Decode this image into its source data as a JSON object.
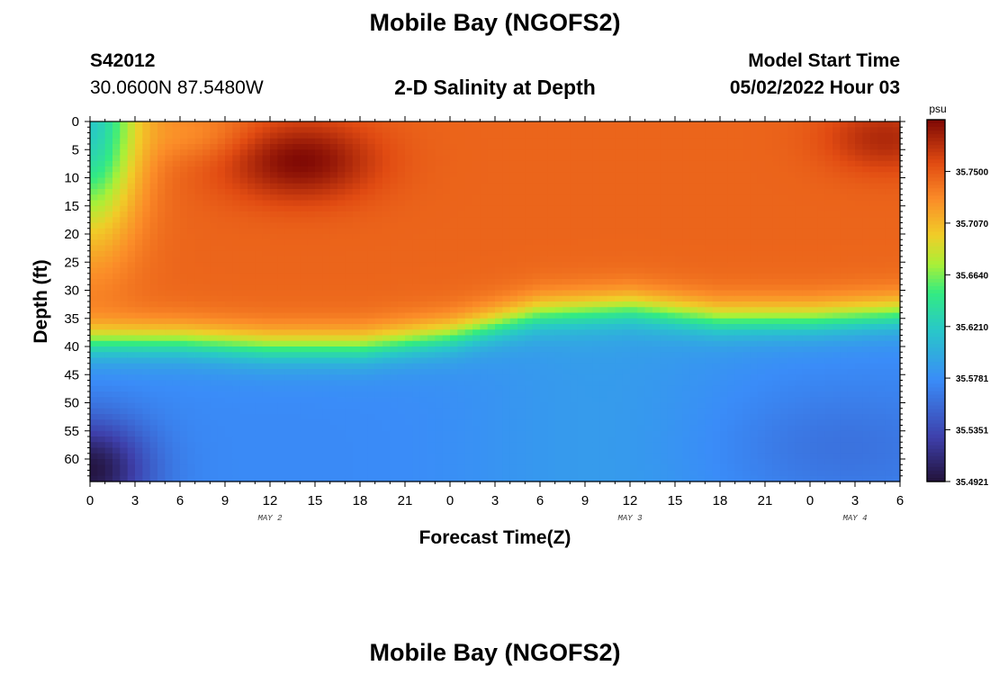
{
  "header": {
    "title": "Mobile Bay (NGOFS2)",
    "station_id": "S42012",
    "coordinates": "30.0600N  87.5480W",
    "subtitle": "2-D Salinity at Depth",
    "model_start_label": "Model Start Time",
    "model_start_value": "05/02/2022 Hour 03"
  },
  "footer": {
    "title": "Mobile Bay (NGOFS2)"
  },
  "chart_data": {
    "type": "heatmap",
    "title": "2-D Salinity at Depth",
    "xlabel": "Forecast Time(Z)",
    "ylabel": "Depth (ft)",
    "x_tick_labels": [
      "0",
      "3",
      "6",
      "9",
      "12",
      "15",
      "18",
      "21",
      "0",
      "3",
      "6",
      "9",
      "12",
      "15",
      "18",
      "21",
      "0",
      "3",
      "6"
    ],
    "x_hours_range": [
      0,
      54
    ],
    "day_labels": [
      {
        "label": "MAY 2",
        "hour": 12
      },
      {
        "label": "MAY 3",
        "hour": 36
      },
      {
        "label": "MAY 4",
        "hour": 51
      }
    ],
    "y_ticks": [
      0,
      5,
      10,
      15,
      20,
      25,
      30,
      35,
      40,
      45,
      50,
      55,
      60
    ],
    "ylim": [
      0,
      64
    ],
    "y_inverted": true,
    "colorbar": {
      "unit": "psu",
      "labels": [
        "35.7500",
        "35.7070",
        "35.6640",
        "35.6210",
        "35.5781",
        "35.5351",
        "35.4921"
      ],
      "values": [
        35.75,
        35.707,
        35.664,
        35.621,
        35.5781,
        35.5351,
        35.4921
      ],
      "range": [
        35.4921,
        35.793
      ],
      "colormap": "turbo"
    },
    "salinity_features": {
      "halocline_depth_ft_by_hour": [
        [
          0,
          39
        ],
        [
          6,
          39
        ],
        [
          12,
          40
        ],
        [
          18,
          40
        ],
        [
          24,
          38
        ],
        [
          30,
          34
        ],
        [
          36,
          33
        ],
        [
          42,
          35
        ],
        [
          48,
          35
        ],
        [
          54,
          34
        ]
      ],
      "upper_layer_value": 35.745,
      "lower_layer_value": 35.575,
      "high_core": {
        "hour": 14,
        "depth_ft": 7,
        "value": 35.792
      },
      "low_core": {
        "hour": 0,
        "depth_ft": 62,
        "value": 35.495
      },
      "low_surface_start": {
        "hour": 0,
        "depth_ft": 0,
        "value": 35.62
      }
    }
  }
}
